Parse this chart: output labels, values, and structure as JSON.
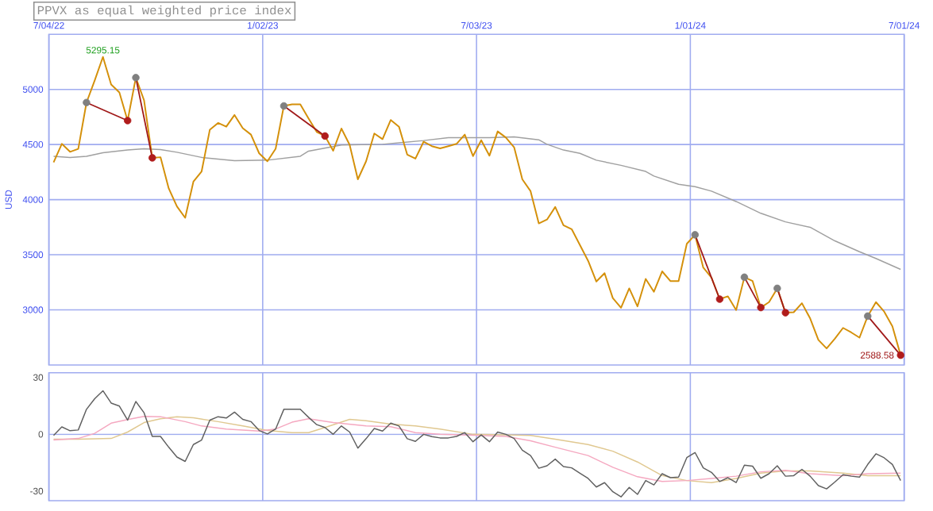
{
  "chart_data": [
    {
      "type": "line",
      "title": "PPVX as equal weighted price index",
      "ylabel": "USD",
      "x": [
        "2022-07-08",
        "2022-07-15",
        "2022-07-22",
        "2022-07-29",
        "2022-08-05",
        "2022-08-12",
        "2022-08-19",
        "2022-08-26",
        "2022-09-02",
        "2022-09-09",
        "2022-09-16",
        "2022-09-23",
        "2022-09-30",
        "2022-10-07",
        "2022-10-14",
        "2022-10-21",
        "2022-10-28",
        "2022-11-04",
        "2022-11-11",
        "2022-11-18",
        "2022-11-25",
        "2022-12-02",
        "2022-12-09",
        "2022-12-16",
        "2022-12-23",
        "2022-12-30",
        "2023-01-06",
        "2023-01-13",
        "2023-01-20",
        "2023-01-27",
        "2023-02-03",
        "2023-02-10",
        "2023-02-17",
        "2023-02-24",
        "2023-03-03",
        "2023-03-10",
        "2023-03-17",
        "2023-03-24",
        "2023-03-31",
        "2023-04-07",
        "2023-04-14",
        "2023-04-21",
        "2023-04-28",
        "2023-05-05",
        "2023-05-12",
        "2023-05-19",
        "2023-05-26",
        "2023-06-02",
        "2023-06-09",
        "2023-06-16",
        "2023-06-23",
        "2023-06-30",
        "2023-07-07",
        "2023-07-14",
        "2023-07-21",
        "2023-07-28",
        "2023-08-04",
        "2023-08-11",
        "2023-08-18",
        "2023-08-25",
        "2023-09-01",
        "2023-09-08",
        "2023-09-15",
        "2023-09-22",
        "2023-09-29",
        "2023-10-06",
        "2023-10-13",
        "2023-10-20",
        "2023-10-27",
        "2023-11-03",
        "2023-11-10",
        "2023-11-17",
        "2023-11-24",
        "2023-12-01",
        "2023-12-08",
        "2023-12-15",
        "2023-12-22",
        "2023-12-29",
        "2024-01-05",
        "2024-01-12",
        "2024-01-19",
        "2024-01-26",
        "2024-02-02",
        "2024-02-09",
        "2024-02-16",
        "2024-02-23",
        "2024-03-01",
        "2024-03-08",
        "2024-03-15",
        "2024-03-22",
        "2024-03-29",
        "2024-04-05",
        "2024-04-12",
        "2024-04-19",
        "2024-04-26",
        "2024-05-03",
        "2024-05-10",
        "2024-05-17",
        "2024-05-24",
        "2024-05-31",
        "2024-06-07",
        "2024-06-14",
        "2024-06-21",
        "2024-06-28"
      ],
      "series": [
        {
          "color": "#a0a0a0",
          "x": [
            "2022-07-08",
            "2022-07-22",
            "2022-08-05",
            "2022-08-19",
            "2022-09-09",
            "2022-09-23",
            "2022-10-07",
            "2022-10-21",
            "2022-11-11",
            "2022-12-09",
            "2023-01-06",
            "2023-02-03",
            "2023-02-10",
            "2023-03-10",
            "2023-04-14",
            "2023-05-19",
            "2023-06-09",
            "2023-07-14",
            "2023-08-04",
            "2023-08-25",
            "2023-09-01",
            "2023-09-15",
            "2023-09-29",
            "2023-10-13",
            "2023-11-03",
            "2023-11-24",
            "2023-12-01",
            "2023-12-22",
            "2024-01-05",
            "2024-01-19",
            "2024-02-09",
            "2024-03-01",
            "2024-03-22",
            "2024-04-12",
            "2024-05-03",
            "2024-05-24",
            "2024-06-07",
            "2024-06-28"
          ],
          "values": [
            4393,
            4383,
            4393,
            4426,
            4450,
            4461,
            4454,
            4430,
            4383,
            4354,
            4358,
            4393,
            4440,
            4495,
            4502,
            4536,
            4563,
            4563,
            4569,
            4543,
            4502,
            4450,
            4420,
            4358,
            4311,
            4256,
            4214,
            4139,
            4118,
            4077,
            3983,
            3876,
            3798,
            3749,
            3626,
            3527,
            3466,
            3367
          ]
        },
        {
          "color": "#d4900a",
          "values": [
            4338,
            4506,
            4434,
            4461,
            4881,
            5082,
            5295.15,
            5045,
            4973,
            4717,
            5107,
            4902,
            4379,
            4385,
            4102,
            3938,
            3835,
            4163,
            4256,
            4635,
            4696,
            4662,
            4768,
            4649,
            4590,
            4420,
            4348,
            4461,
            4850,
            4865,
            4865,
            4737,
            4614,
            4577,
            4444,
            4645,
            4497,
            4184,
            4348,
            4600,
            4549,
            4723,
            4662,
            4409,
            4372,
            4526,
            4485,
            4465,
            4485,
            4506,
            4590,
            4395,
            4539,
            4399,
            4619,
            4563,
            4475,
            4184,
            4077,
            3784,
            3819,
            3933,
            3767,
            3732,
            3589,
            3445,
            3257,
            3333,
            3107,
            3019,
            3195,
            3031,
            3281,
            3164,
            3349,
            3261,
            3261,
            3599,
            3681,
            3384,
            3292,
            3097,
            3123,
            2998,
            3296,
            3261,
            3021,
            3070,
            3195,
            2974,
            2978,
            3060,
            2922,
            2727,
            2650,
            2738,
            2836,
            2795,
            2748,
            2943,
            3070,
            2984,
            2850,
            2588.58
          ]
        },
        {
          "color": "#a01818",
          "marker": "circle",
          "x": [
            "2022-08-05",
            "2022-09-09"
          ],
          "values": [
            4881,
            4717
          ],
          "colors": [
            "#808080",
            "#b01c1c"
          ]
        },
        {
          "color": "#a01818",
          "marker": "circle",
          "x": [
            "2022-09-16",
            "2022-09-30"
          ],
          "values": [
            5107,
            4379
          ],
          "colors": [
            "#808080",
            "#b01c1c"
          ]
        },
        {
          "color": "#a01818",
          "marker": "circle",
          "x": [
            "2023-01-20",
            "2023-02-24"
          ],
          "values": [
            4850,
            4577
          ],
          "colors": [
            "#808080",
            "#b01c1c"
          ]
        },
        {
          "color": "#a01818",
          "marker": "circle",
          "x": [
            "2024-01-05",
            "2024-01-26"
          ],
          "values": [
            3681,
            3097
          ],
          "colors": [
            "#808080",
            "#b01c1c"
          ]
        },
        {
          "color": "#a01818",
          "marker": "circle",
          "x": [
            "2024-02-16",
            "2024-03-01"
          ],
          "values": [
            3296,
            3021
          ],
          "colors": [
            "#808080",
            "#b01c1c"
          ]
        },
        {
          "color": "#a01818",
          "marker": "circle",
          "x": [
            "2024-03-15",
            "2024-03-22"
          ],
          "values": [
            3195,
            2974
          ],
          "colors": [
            "#808080",
            "#b01c1c"
          ]
        },
        {
          "color": "#a01818",
          "marker": "circle",
          "x": [
            "2024-05-31",
            "2024-06-28"
          ],
          "values": [
            2943,
            2588.58
          ],
          "colors": [
            "#808080",
            "#b01c1c"
          ]
        }
      ],
      "xlim": [
        "2022-07-04",
        "2024-07-01"
      ],
      "ylim": [
        2500,
        5500
      ],
      "xticks": [
        {
          "value": "2022-07-04",
          "label": "7/04/22"
        },
        {
          "value": "2023-01-02",
          "label": "1/02/23"
        },
        {
          "value": "2023-07-03",
          "label": "7/03/23"
        },
        {
          "value": "2024-01-01",
          "label": "1/01/24"
        },
        {
          "value": "2024-07-01",
          "label": "7/01/24"
        }
      ],
      "yticks": [
        3000,
        3500,
        4000,
        4500,
        5000
      ],
      "grid": true,
      "annotations": [
        {
          "text": "5295.15",
          "x": "2022-08-19",
          "y": 5295.15
        },
        {
          "text": "2588.58",
          "x": "2024-06-28",
          "y": 2588.58
        }
      ]
    },
    {
      "type": "line",
      "x": [
        "2022-07-08",
        "2022-07-15",
        "2022-07-22",
        "2022-07-29",
        "2022-08-05",
        "2022-08-12",
        "2022-08-19",
        "2022-08-26",
        "2022-09-02",
        "2022-09-09",
        "2022-09-16",
        "2022-09-23",
        "2022-09-30",
        "2022-10-07",
        "2022-10-14",
        "2022-10-21",
        "2022-10-28",
        "2022-11-04",
        "2022-11-11",
        "2022-11-18",
        "2022-11-25",
        "2022-12-02",
        "2022-12-09",
        "2022-12-16",
        "2022-12-23",
        "2022-12-30",
        "2023-01-06",
        "2023-01-13",
        "2023-01-20",
        "2023-01-27",
        "2023-02-03",
        "2023-02-10",
        "2023-02-17",
        "2023-02-24",
        "2023-03-03",
        "2023-03-10",
        "2023-03-17",
        "2023-03-24",
        "2023-03-31",
        "2023-04-07",
        "2023-04-14",
        "2023-04-21",
        "2023-04-28",
        "2023-05-05",
        "2023-05-12",
        "2023-05-19",
        "2023-05-26",
        "2023-06-02",
        "2023-06-09",
        "2023-06-16",
        "2023-06-23",
        "2023-06-30",
        "2023-07-07",
        "2023-07-14",
        "2023-07-21",
        "2023-07-28",
        "2023-08-04",
        "2023-08-11",
        "2023-08-18",
        "2023-08-25",
        "2023-09-01",
        "2023-09-08",
        "2023-09-15",
        "2023-09-22",
        "2023-09-29",
        "2023-10-06",
        "2023-10-13",
        "2023-10-20",
        "2023-10-27",
        "2023-11-03",
        "2023-11-10",
        "2023-11-17",
        "2023-11-24",
        "2023-12-01",
        "2023-12-08",
        "2023-12-15",
        "2023-12-22",
        "2023-12-29",
        "2024-01-05",
        "2024-01-12",
        "2024-01-19",
        "2024-01-26",
        "2024-02-02",
        "2024-02-09",
        "2024-02-16",
        "2024-02-23",
        "2024-03-01",
        "2024-03-08",
        "2024-03-15",
        "2024-03-22",
        "2024-03-29",
        "2024-04-05",
        "2024-04-12",
        "2024-04-19",
        "2024-04-26",
        "2024-05-03",
        "2024-05-10",
        "2024-05-17",
        "2024-05-24",
        "2024-05-31",
        "2024-06-07",
        "2024-06-14",
        "2024-06-21",
        "2024-06-28"
      ],
      "series": [
        {
          "color": "#e0c890",
          "x": [
            "2022-07-08",
            "2022-07-29",
            "2022-08-26",
            "2022-09-09",
            "2022-09-23",
            "2022-10-07",
            "2022-10-21",
            "2022-11-04",
            "2022-11-25",
            "2022-12-16",
            "2023-01-06",
            "2023-01-27",
            "2023-02-10",
            "2023-02-24",
            "2023-03-17",
            "2023-03-31",
            "2023-04-21",
            "2023-05-12",
            "2023-06-02",
            "2023-06-30",
            "2023-07-28",
            "2023-08-18",
            "2023-09-08",
            "2023-10-06",
            "2023-10-27",
            "2023-11-17",
            "2023-12-08",
            "2023-12-29",
            "2024-01-19",
            "2024-02-09",
            "2024-03-01",
            "2024-03-22",
            "2024-04-12",
            "2024-05-10",
            "2024-05-31",
            "2024-06-28"
          ],
          "values": [
            -2.6,
            -2.6,
            -2.2,
            1.2,
            6.2,
            8.2,
            9.3,
            8.7,
            6.7,
            4.4,
            2,
            0.9,
            0.9,
            3.6,
            7.9,
            7.2,
            5.4,
            4.4,
            2.8,
            0,
            -0.3,
            -0.6,
            -2.6,
            -5.4,
            -8.9,
            -14.6,
            -21.8,
            -24.4,
            -25.5,
            -23.3,
            -20.5,
            -19.3,
            -19.3,
            -20.5,
            -21.8,
            -21.8
          ]
        },
        {
          "color": "#f5a8c0",
          "x": [
            "2022-07-08",
            "2022-07-29",
            "2022-08-12",
            "2022-08-26",
            "2022-09-09",
            "2022-09-23",
            "2022-10-07",
            "2022-10-28",
            "2022-11-11",
            "2022-12-02",
            "2022-12-30",
            "2023-01-13",
            "2023-01-27",
            "2023-02-10",
            "2023-03-03",
            "2023-03-31",
            "2023-04-21",
            "2023-05-12",
            "2023-06-02",
            "2023-06-30",
            "2023-07-28",
            "2023-08-18",
            "2023-09-08",
            "2023-10-06",
            "2023-10-27",
            "2023-11-17",
            "2023-12-08",
            "2023-12-29",
            "2024-01-19",
            "2024-02-09",
            "2024-03-01",
            "2024-03-22",
            "2024-04-12",
            "2024-05-10",
            "2024-05-31",
            "2024-06-28"
          ],
          "values": [
            -3,
            -2.2,
            0.5,
            5.9,
            7.8,
            9.5,
            9.3,
            6.7,
            4.4,
            2.8,
            1.7,
            2.8,
            6.4,
            8.2,
            6.2,
            4.4,
            4,
            0.9,
            0,
            -0.5,
            -1.1,
            -3.4,
            -6.8,
            -11.2,
            -17.4,
            -22.4,
            -24.9,
            -24.4,
            -23.3,
            -22.1,
            -19.8,
            -19,
            -20.8,
            -21.8,
            -20.8,
            -20.5
          ]
        },
        {
          "color": "#606060",
          "values": [
            -0.6,
            3.9,
            1.9,
            2.3,
            13.2,
            18.8,
            23,
            16.5,
            14.9,
            7.5,
            17.3,
            11.4,
            -1.1,
            -1.1,
            -6.8,
            -12,
            -14.3,
            -5.4,
            -3,
            7.5,
            9.3,
            8.6,
            11.7,
            7.9,
            6.7,
            2,
            0.2,
            2.8,
            13.2,
            13.2,
            13.2,
            9,
            5.1,
            3.6,
            0,
            4.4,
            1.2,
            -7.3,
            -2.3,
            3.1,
            1.7,
            5.9,
            4.4,
            -2.3,
            -3.7,
            0,
            -1.2,
            -1.9,
            -1.9,
            -1.1,
            0.9,
            -3.9,
            -0.3,
            -3.9,
            1.2,
            0,
            -2.2,
            -8.4,
            -11.2,
            -17.9,
            -16.6,
            -13.1,
            -17,
            -17.7,
            -20.5,
            -23.3,
            -27.8,
            -25.5,
            -30.3,
            -33,
            -28,
            -31.7,
            -24.4,
            -26.7,
            -20.8,
            -22.9,
            -22.6,
            -12.3,
            -9.6,
            -17.7,
            -20.1,
            -24.9,
            -22.9,
            -25.5,
            -16.3,
            -16.8,
            -23.2,
            -20.8,
            -16.6,
            -22.1,
            -21.8,
            -18.5,
            -22.1,
            -27.1,
            -28.8,
            -25.2,
            -21.3,
            -22.1,
            -22.6,
            -15.9,
            -10.3,
            -12.4,
            -15.9,
            -24.4
          ]
        }
      ],
      "xlim": [
        "2022-07-04",
        "2024-07-01"
      ],
      "ylim": [
        -35,
        32.5
      ],
      "xticks": [
        {
          "value": "2022-07-04",
          "label": null
        },
        {
          "value": "2023-01-02",
          "label": null
        },
        {
          "value": "2023-07-03",
          "label": null
        },
        {
          "value": "2024-01-01",
          "label": null
        },
        {
          "value": "2024-07-01",
          "label": null
        }
      ],
      "yticks": [
        -30,
        0,
        30
      ],
      "tick_labels": "y",
      "grid": "x",
      "ref_lines": [
        {
          "axis": "y",
          "value": 0,
          "color": "#a0acf0"
        }
      ]
    }
  ]
}
